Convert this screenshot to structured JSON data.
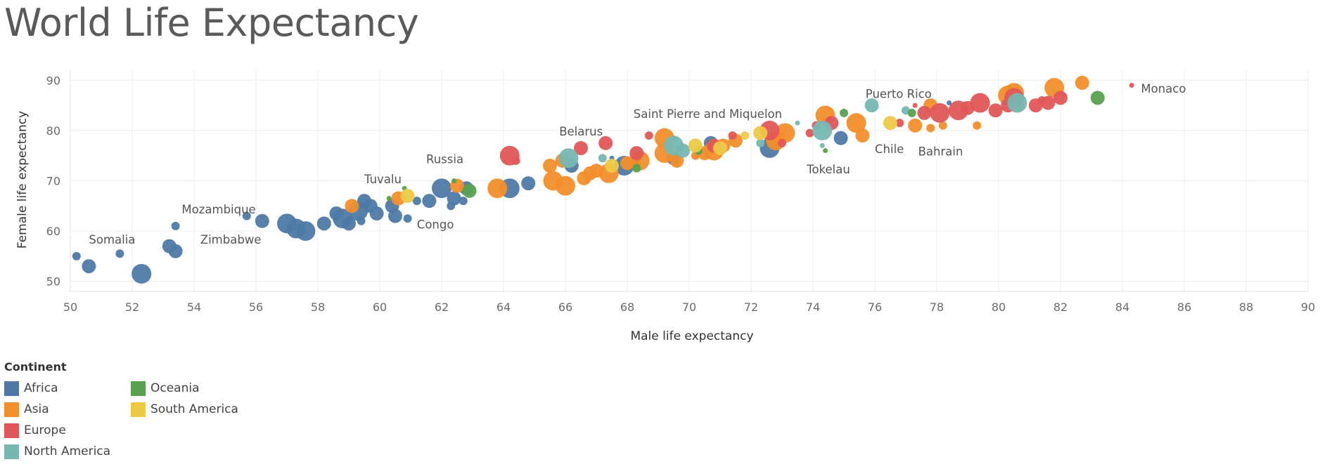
{
  "page": {
    "title": "World Life Expectancy"
  },
  "legend": {
    "title": "Continent",
    "items": [
      {
        "name": "Africa",
        "color": "#4e79a7"
      },
      {
        "name": "Asia",
        "color": "#f28e2b"
      },
      {
        "name": "Europe",
        "color": "#e15759"
      },
      {
        "name": "North America",
        "color": "#76b7b2"
      },
      {
        "name": "Oceania",
        "color": "#59a14f"
      },
      {
        "name": "South America",
        "color": "#edc948"
      }
    ]
  },
  "chart_data": {
    "type": "scatter",
    "xlabel": "Male life expectancy",
    "ylabel": "Female life expectancy",
    "xlim": [
      50,
      90
    ],
    "ylim": [
      48,
      92
    ],
    "xticks": [
      50,
      52,
      54,
      56,
      58,
      60,
      62,
      64,
      66,
      68,
      70,
      72,
      74,
      76,
      78,
      80,
      82,
      84,
      86,
      88,
      90
    ],
    "yticks": [
      50,
      60,
      70,
      80,
      90
    ],
    "grid": true,
    "size_encoding": "population",
    "color_encoding": "Continent",
    "series": [
      {
        "name": "Africa",
        "color": "#4e79a7",
        "points": [
          [
            50.2,
            55,
            "s"
          ],
          [
            50.6,
            53,
            "m"
          ],
          [
            51.6,
            55.5,
            "s"
          ],
          [
            52.3,
            51.5,
            "l"
          ],
          [
            53.2,
            57,
            "m"
          ],
          [
            53.4,
            56,
            "m"
          ],
          [
            53.4,
            61,
            "s"
          ],
          [
            55.7,
            63,
            "s"
          ],
          [
            56.2,
            62,
            "m"
          ],
          [
            57,
            61.5,
            "l"
          ],
          [
            57.3,
            60.5,
            "l"
          ],
          [
            57.6,
            60,
            "l"
          ],
          [
            58.2,
            61.5,
            "m"
          ],
          [
            58.6,
            63.5,
            "m"
          ],
          [
            58.8,
            62.5,
            "l"
          ],
          [
            59,
            61.5,
            "m"
          ],
          [
            59.3,
            64,
            "l"
          ],
          [
            59.4,
            62,
            "s"
          ],
          [
            59.5,
            66,
            "m"
          ],
          [
            59.7,
            65,
            "m"
          ],
          [
            59.9,
            63.5,
            "m"
          ],
          [
            60.4,
            65,
            "m"
          ],
          [
            60.5,
            63,
            "m"
          ],
          [
            60.9,
            62.5,
            "s"
          ],
          [
            61.2,
            66,
            "s"
          ],
          [
            61.6,
            66,
            "m"
          ],
          [
            62,
            68.5,
            "l"
          ],
          [
            62.4,
            66.5,
            "m"
          ],
          [
            62.3,
            65,
            "s"
          ],
          [
            62.7,
            66,
            "s"
          ],
          [
            62.8,
            68.5,
            "m"
          ],
          [
            64.2,
            68.5,
            "l"
          ],
          [
            64.8,
            69.5,
            "m"
          ],
          [
            66.2,
            73,
            "m"
          ],
          [
            67.5,
            74.5,
            "xs"
          ],
          [
            67.9,
            73,
            "l"
          ],
          [
            68.3,
            73.5,
            "s"
          ],
          [
            69.5,
            74.5,
            "m"
          ],
          [
            69.5,
            78.5,
            "xs"
          ],
          [
            70.7,
            77.5,
            "m"
          ],
          [
            72.6,
            76.5,
            "l"
          ],
          [
            74.9,
            78.5,
            "m"
          ],
          [
            78.4,
            85.5,
            "xs"
          ]
        ]
      },
      {
        "name": "Asia",
        "color": "#f28e2b",
        "points": [
          [
            59.1,
            65,
            "m"
          ],
          [
            60.6,
            66.5,
            "m"
          ],
          [
            62.5,
            69,
            "m"
          ],
          [
            63.8,
            68.5,
            "l"
          ],
          [
            65.5,
            73,
            "m"
          ],
          [
            65.6,
            70,
            "l"
          ],
          [
            65.9,
            74,
            "m"
          ],
          [
            66,
            69,
            "l"
          ],
          [
            66.6,
            70.5,
            "m"
          ],
          [
            66.8,
            71.5,
            "m"
          ],
          [
            67,
            72,
            "m"
          ],
          [
            67.4,
            71.5,
            "l"
          ],
          [
            68,
            73.5,
            "m"
          ],
          [
            68.4,
            74,
            "l"
          ],
          [
            69.2,
            78.5,
            "l"
          ],
          [
            69.2,
            75.5,
            "l"
          ],
          [
            69.6,
            74,
            "m"
          ],
          [
            70.2,
            75,
            "s"
          ],
          [
            70.5,
            75.5,
            "m"
          ],
          [
            70.8,
            76,
            "l"
          ],
          [
            71.1,
            77,
            "m"
          ],
          [
            71.5,
            78,
            "m"
          ],
          [
            72.8,
            78,
            "l"
          ],
          [
            72.9,
            78.5,
            "m"
          ],
          [
            73.1,
            79.5,
            "l"
          ],
          [
            74.4,
            83,
            "l"
          ],
          [
            75.4,
            81.5,
            "l"
          ],
          [
            75.6,
            79,
            "m"
          ],
          [
            77.3,
            81,
            "m"
          ],
          [
            77.8,
            85,
            "m"
          ],
          [
            77.8,
            80.5,
            "s"
          ],
          [
            78.2,
            81,
            "s"
          ],
          [
            79.3,
            81,
            "s"
          ],
          [
            80.3,
            87,
            "l"
          ],
          [
            80.5,
            87.5,
            "l"
          ],
          [
            80.6,
            85,
            "m"
          ],
          [
            81.8,
            88.5,
            "l"
          ],
          [
            82.7,
            89.5,
            "m"
          ]
        ]
      },
      {
        "name": "Europe",
        "color": "#e15759",
        "points": [
          [
            64.2,
            75,
            "l"
          ],
          [
            64.4,
            74,
            "s"
          ],
          [
            66.5,
            76.5,
            "m"
          ],
          [
            67.3,
            77.5,
            "m"
          ],
          [
            68.3,
            75.5,
            "m"
          ],
          [
            68.7,
            79,
            "s"
          ],
          [
            70.8,
            77,
            "m"
          ],
          [
            71.4,
            79,
            "s"
          ],
          [
            72.6,
            80,
            "l"
          ],
          [
            73,
            77.5,
            "s"
          ],
          [
            73.9,
            79.5,
            "s"
          ],
          [
            74.1,
            81,
            "s"
          ],
          [
            74.6,
            81.5,
            "m"
          ],
          [
            76.8,
            81.5,
            "s"
          ],
          [
            77.3,
            85,
            "xs"
          ],
          [
            77.6,
            83.5,
            "m"
          ],
          [
            78.1,
            83.5,
            "l"
          ],
          [
            78.7,
            84,
            "l"
          ],
          [
            79,
            84.5,
            "m"
          ],
          [
            79.4,
            85.5,
            "l"
          ],
          [
            79.9,
            84,
            "m"
          ],
          [
            80.3,
            85,
            "m"
          ],
          [
            80.5,
            86.5,
            "l"
          ],
          [
            81.2,
            85,
            "m"
          ],
          [
            81.4,
            86,
            "s"
          ],
          [
            81.6,
            85.5,
            "m"
          ],
          [
            82,
            86.5,
            "m"
          ],
          [
            84.3,
            89,
            "xs"
          ]
        ]
      },
      {
        "name": "North America",
        "color": "#76b7b2",
        "points": [
          [
            66.1,
            74.5,
            "l"
          ],
          [
            67.2,
            74.5,
            "s"
          ],
          [
            69.5,
            77,
            "l"
          ],
          [
            69.8,
            76,
            "m"
          ],
          [
            72.3,
            77.5,
            "s"
          ],
          [
            73.5,
            81.5,
            "xs"
          ],
          [
            74.3,
            80,
            "l"
          ],
          [
            74.3,
            77,
            "xs"
          ],
          [
            75.9,
            85,
            "m"
          ],
          [
            77,
            84,
            "s"
          ],
          [
            80.6,
            85.5,
            "l"
          ]
        ]
      },
      {
        "name": "Oceania",
        "color": "#59a14f",
        "points": [
          [
            60.3,
            66.5,
            "xs"
          ],
          [
            60.8,
            68.5,
            "xs"
          ],
          [
            62.4,
            70,
            "xs"
          ],
          [
            62.9,
            68,
            "m"
          ],
          [
            68.3,
            72.5,
            "s"
          ],
          [
            70.3,
            76,
            "s"
          ],
          [
            74.4,
            76,
            "xs"
          ],
          [
            75,
            83.5,
            "s"
          ],
          [
            77.2,
            83.5,
            "s"
          ],
          [
            83.2,
            86.5,
            "m"
          ]
        ]
      },
      {
        "name": "South America",
        "color": "#edc948",
        "points": [
          [
            60.9,
            67,
            "m"
          ],
          [
            67.5,
            73,
            "m"
          ],
          [
            70.2,
            77,
            "m"
          ],
          [
            71,
            76.5,
            "m"
          ],
          [
            71.8,
            79,
            "s"
          ],
          [
            72.3,
            79.5,
            "m"
          ],
          [
            76.5,
            81.5,
            "m"
          ]
        ]
      }
    ],
    "annotations": [
      {
        "text": "Somalia",
        "x": 50.6,
        "y": 57.5
      },
      {
        "text": "Mozambique",
        "x": 53.6,
        "y": 63.5
      },
      {
        "text": "Zimbabwe",
        "x": 54.2,
        "y": 57.5
      },
      {
        "text": "Tuvalu",
        "x": 59.5,
        "y": 69.5
      },
      {
        "text": "Congo",
        "x": 61.2,
        "y": 60.5
      },
      {
        "text": "Russia",
        "x": 61.5,
        "y": 73.5
      },
      {
        "text": "Belarus",
        "x": 65.8,
        "y": 79
      },
      {
        "text": "Saint Pierre and Miquelon",
        "x": 68.2,
        "y": 82.5
      },
      {
        "text": "Tokelau",
        "x": 73.8,
        "y": 71.5
      },
      {
        "text": "Puerto Rico",
        "x": 75.7,
        "y": 86.5
      },
      {
        "text": "Chile",
        "x": 76.0,
        "y": 75.5
      },
      {
        "text": "Bahrain",
        "x": 77.4,
        "y": 75
      },
      {
        "text": "Monaco",
        "x": 84.6,
        "y": 87.5
      }
    ]
  }
}
